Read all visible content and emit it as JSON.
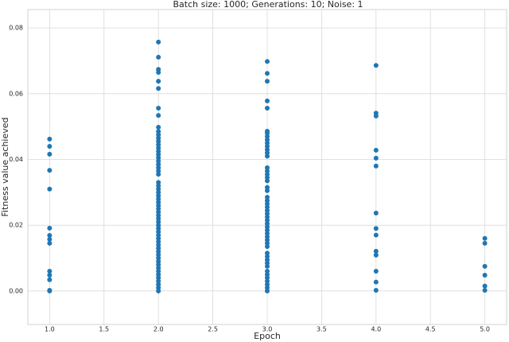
{
  "chart_data": {
    "type": "scatter",
    "title": "Batch size: 1000; Generations: 10; Noise: 1",
    "xlabel": "Epoch",
    "ylabel": "Fitness value achieved",
    "color": "#1f77b4",
    "grid": true,
    "xlim": [
      0.8,
      5.2
    ],
    "xticks": [
      {
        "value": 1.0,
        "label": "1.0"
      },
      {
        "value": 1.5,
        "label": "1.5"
      },
      {
        "value": 2.0,
        "label": "2.0"
      },
      {
        "value": 2.5,
        "label": "2.5"
      },
      {
        "value": 3.0,
        "label": "3.0"
      },
      {
        "value": 3.5,
        "label": "3.5"
      },
      {
        "value": 4.0,
        "label": "4.0"
      },
      {
        "value": 4.5,
        "label": "4.5"
      },
      {
        "value": 5.0,
        "label": "5.0"
      }
    ],
    "ylim": [
      -0.0102,
      0.0856
    ],
    "yticks": [
      {
        "value": 0,
        "label": "0.00"
      },
      {
        "value": 0.02,
        "label": "0.02"
      },
      {
        "value": 0.04,
        "label": "0.04"
      },
      {
        "value": 0.06,
        "label": "0.06"
      },
      {
        "value": 0.08,
        "label": "0.08"
      }
    ],
    "series": [
      {
        "x": [
          1,
          1,
          1,
          1,
          1,
          1,
          1,
          1,
          1,
          1,
          1,
          1,
          1,
          1
        ],
        "values": [
          0.0462,
          0.044,
          0.0416,
          0.0367,
          0.031,
          0.0191,
          0.0169,
          0.0157,
          0.0145,
          0.006,
          0.0048,
          0.0034,
          0.0002,
          0
        ]
      },
      {
        "x": [
          2,
          2,
          2,
          2,
          2,
          2,
          2,
          2,
          2,
          2,
          2,
          2,
          2,
          2,
          2,
          2,
          2,
          2,
          2,
          2,
          2,
          2,
          2,
          2,
          2,
          2,
          2,
          2,
          2,
          2,
          2,
          2,
          2,
          2,
          2,
          2,
          2,
          2,
          2,
          2,
          2,
          2,
          2,
          2,
          2,
          2,
          2,
          2,
          2,
          2,
          2,
          2,
          2,
          2,
          2,
          2,
          2
        ],
        "values": [
          0.0757,
          0.0711,
          0.0674,
          0.0665,
          0.0638,
          0.0616,
          0.0556,
          0.0534,
          0.0498,
          0.0485,
          0.0475,
          0.0465,
          0.0455,
          0.0445,
          0.0435,
          0.0425,
          0.0415,
          0.0405,
          0.0395,
          0.0385,
          0.0375,
          0.0365,
          0.0355,
          0.033,
          0.032,
          0.031,
          0.03,
          0.029,
          0.028,
          0.027,
          0.026,
          0.025,
          0.024,
          0.023,
          0.022,
          0.021,
          0.02,
          0.019,
          0.018,
          0.017,
          0.016,
          0.015,
          0.014,
          0.013,
          0.012,
          0.011,
          0.01,
          0.009,
          0.008,
          0.007,
          0.006,
          0.005,
          0.004,
          0.003,
          0.002,
          0.001,
          0
        ]
      },
      {
        "x": [
          3,
          3,
          3,
          3,
          3,
          3,
          3,
          3,
          3,
          3,
          3,
          3,
          3,
          3,
          3,
          3,
          3,
          3,
          3,
          3,
          3,
          3,
          3,
          3,
          3,
          3,
          3,
          3,
          3,
          3,
          3,
          3,
          3,
          3,
          3,
          3,
          3,
          3,
          3,
          3,
          3,
          3,
          3,
          3,
          3,
          3,
          3,
          3,
          3
        ],
        "values": [
          0.0698,
          0.0662,
          0.0638,
          0.0578,
          0.0556,
          0.0486,
          0.048,
          0.047,
          0.046,
          0.045,
          0.044,
          0.043,
          0.042,
          0.041,
          0.0375,
          0.0365,
          0.0355,
          0.0345,
          0.0335,
          0.0315,
          0.0305,
          0.0285,
          0.0275,
          0.0265,
          0.0255,
          0.0245,
          0.0235,
          0.0225,
          0.0215,
          0.0205,
          0.0195,
          0.0185,
          0.0175,
          0.0165,
          0.0155,
          0.0145,
          0.0135,
          0.0115,
          0.0105,
          0.0095,
          0.0085,
          0.0075,
          0.006,
          0.005,
          0.004,
          0.003,
          0.002,
          0.001,
          0
        ]
      },
      {
        "x": [
          4,
          4,
          4,
          4,
          4,
          4,
          4,
          4,
          4,
          4,
          4,
          4,
          4,
          4
        ],
        "values": [
          0.0686,
          0.0541,
          0.0532,
          0.0428,
          0.0404,
          0.038,
          0.0237,
          0.019,
          0.017,
          0.0121,
          0.0109,
          0.006,
          0.0027,
          0.0002
        ]
      },
      {
        "x": [
          5,
          5,
          5,
          5,
          5,
          5
        ],
        "values": [
          0.016,
          0.0145,
          0.0075,
          0.0048,
          0.0015,
          0.0002
        ]
      }
    ]
  }
}
